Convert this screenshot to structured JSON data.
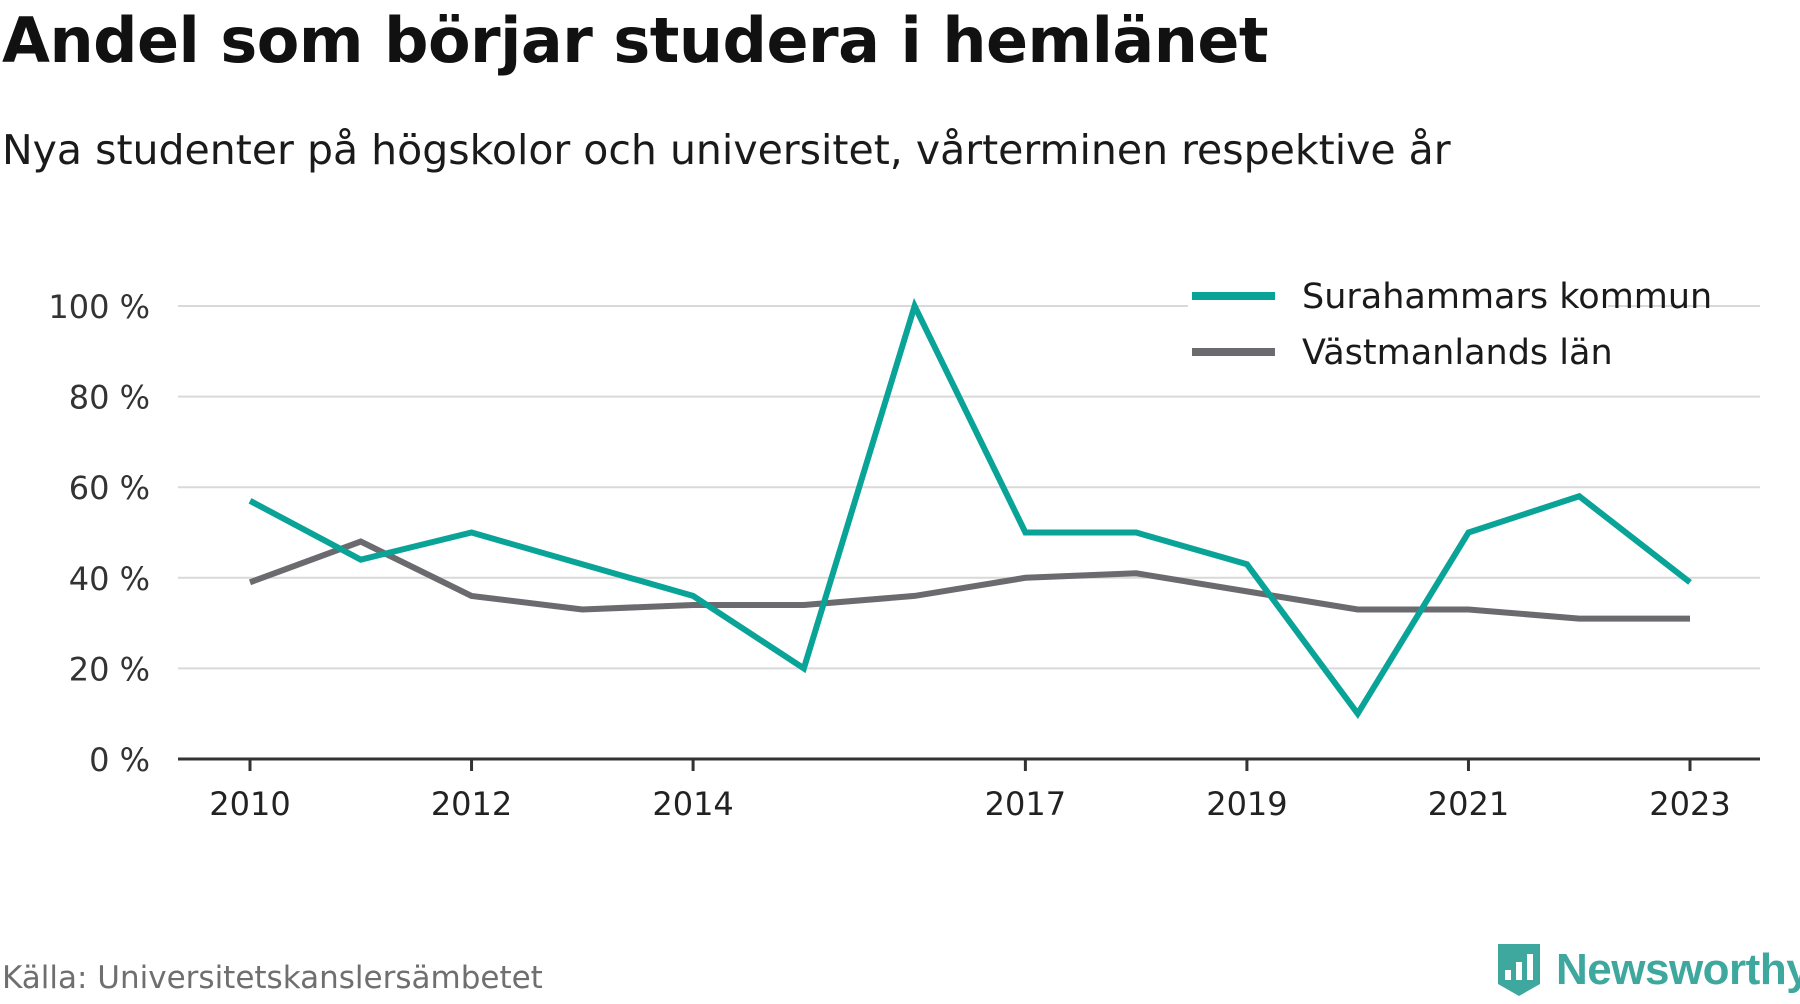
{
  "header": {
    "title": "Andel som börjar studera i hemlänet",
    "subtitle": "Nya studenter på högskolor och universitet, vårterminen respektive år"
  },
  "footer": {
    "source": "Källa: Universitetskanslersämbetet",
    "brand": "Newsworthy",
    "brand_icon": "bar-chart-badge-icon"
  },
  "colors": {
    "series_1": "#0aa397",
    "series_2": "#6b6a6f",
    "grid": "#d9d9d9",
    "axis": "#333333",
    "brand": "#3ea89e"
  },
  "chart_data": {
    "type": "line",
    "title": "Andel som börjar studera i hemlänet",
    "subtitle": "Nya studenter på högskolor och universitet, vårterminen respektive år",
    "x": [
      2010,
      2011,
      2012,
      2013,
      2014,
      2015,
      2016,
      2017,
      2018,
      2019,
      2020,
      2021,
      2022,
      2023
    ],
    "x_ticks": [
      "2010",
      "2012",
      "2014",
      "2017",
      "2019",
      "2021",
      "2023"
    ],
    "y_ticks": [
      "0 %",
      "20 %",
      "40 %",
      "60 %",
      "80 %",
      "100 %"
    ],
    "ylim": [
      0,
      100
    ],
    "grid": true,
    "legend_position": "top-right",
    "series": [
      {
        "name": "Surahammars kommun",
        "values": [
          57,
          44,
          50,
          43,
          36,
          20,
          100,
          50,
          50,
          43,
          10,
          50,
          58,
          39
        ]
      },
      {
        "name": "Västmanlands län",
        "values": [
          39,
          48,
          36,
          33,
          34,
          34,
          36,
          40,
          41,
          37,
          33,
          33,
          31,
          31
        ]
      }
    ]
  }
}
